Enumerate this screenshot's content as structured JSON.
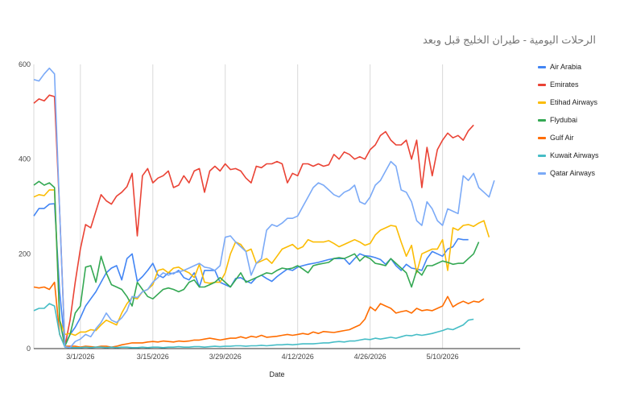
{
  "chart_data": {
    "type": "line",
    "title": "الرحلات اليومية - طيران الخليج قبل وبعد",
    "xlabel": "Date",
    "ylabel": "",
    "x_start": "2026-02-20",
    "xlim": [
      "2026-02-20",
      "2026-05-25"
    ],
    "ylim": [
      0,
      600
    ],
    "yticks": [
      0,
      200,
      400,
      600
    ],
    "xticks": [
      "3/1/2026",
      "3/15/2026",
      "3/29/2026",
      "4/12/2026",
      "4/26/2026",
      "5/10/2026"
    ],
    "grid": "vertical",
    "legend_position": "right",
    "series": [
      {
        "name": "Air Arabia",
        "color": "#4285F4",
        "values": [
          280,
          296,
          296,
          305,
          306,
          120,
          8,
          30,
          45,
          65,
          90,
          105,
          120,
          140,
          160,
          170,
          175,
          145,
          190,
          200,
          142,
          152,
          165,
          180,
          155,
          150,
          160,
          158,
          165,
          150,
          145,
          160,
          130,
          165,
          165,
          165,
          140,
          135,
          130,
          148,
          150,
          143,
          138,
          150,
          155,
          148,
          142,
          152,
          160,
          168,
          165,
          172,
          175,
          178,
          180,
          182,
          185,
          188,
          190,
          190,
          190,
          178,
          190,
          200,
          196,
          195,
          192,
          188,
          178,
          190,
          175,
          165,
          178,
          170,
          168,
          165,
          190,
          205,
          200,
          195,
          210,
          215,
          232,
          230,
          230
        ]
      },
      {
        "name": "Emirates",
        "color": "#EA4335",
        "values": [
          518,
          527,
          523,
          535,
          532,
          290,
          5,
          60,
          140,
          210,
          262,
          255,
          290,
          325,
          312,
          305,
          322,
          330,
          342,
          370,
          238,
          365,
          380,
          350,
          360,
          365,
          375,
          340,
          345,
          365,
          350,
          375,
          380,
          330,
          375,
          385,
          375,
          390,
          378,
          380,
          375,
          360,
          350,
          385,
          382,
          390,
          390,
          395,
          390,
          350,
          370,
          365,
          390,
          390,
          385,
          390,
          385,
          388,
          410,
          400,
          415,
          410,
          400,
          405,
          400,
          420,
          430,
          450,
          458,
          440,
          430,
          430,
          440,
          400,
          440,
          340,
          425,
          365,
          420,
          440,
          455,
          445,
          450,
          440,
          460,
          472
        ]
      },
      {
        "name": "Etihad Airways",
        "color": "#FBBC04",
        "values": [
          320,
          325,
          323,
          335,
          335,
          60,
          30,
          32,
          28,
          35,
          35,
          40,
          38,
          50,
          60,
          55,
          50,
          75,
          95,
          108,
          105,
          120,
          125,
          135,
          165,
          168,
          160,
          170,
          172,
          165,
          160,
          150,
          178,
          140,
          138,
          140,
          140,
          160,
          200,
          225,
          220,
          205,
          210,
          180,
          185,
          190,
          180,
          195,
          210,
          215,
          220,
          210,
          215,
          230,
          225,
          225,
          225,
          228,
          222,
          215,
          220,
          225,
          230,
          225,
          218,
          222,
          240,
          250,
          255,
          260,
          258,
          225,
          195,
          218,
          160,
          200,
          205,
          210,
          210,
          230,
          165,
          255,
          250,
          260,
          262,
          258,
          265,
          270,
          235
        ]
      },
      {
        "name": "Flydubai",
        "color": "#34A853",
        "values": [
          345,
          353,
          345,
          350,
          340,
          60,
          5,
          30,
          75,
          90,
          172,
          175,
          140,
          195,
          160,
          135,
          130,
          125,
          110,
          90,
          140,
          125,
          110,
          105,
          115,
          125,
          128,
          125,
          120,
          125,
          140,
          145,
          130,
          130,
          135,
          140,
          150,
          140,
          130,
          145,
          160,
          140,
          145,
          150,
          155,
          160,
          158,
          165,
          170,
          168,
          170,
          175,
          168,
          160,
          175,
          178,
          180,
          182,
          190,
          192,
          190,
          195,
          200,
          185,
          195,
          190,
          180,
          178,
          175,
          190,
          180,
          170,
          160,
          130,
          165,
          155,
          175,
          175,
          180,
          185,
          182,
          178,
          180,
          180,
          190,
          200,
          225
        ]
      },
      {
        "name": "Gulf Air",
        "color": "#FF6D01",
        "values": [
          130,
          128,
          130,
          125,
          140,
          30,
          5,
          5,
          5,
          3,
          5,
          4,
          3,
          5,
          5,
          3,
          5,
          8,
          10,
          12,
          12,
          12,
          14,
          15,
          14,
          16,
          15,
          14,
          16,
          15,
          16,
          18,
          18,
          20,
          22,
          20,
          18,
          20,
          22,
          22,
          25,
          22,
          26,
          24,
          28,
          24,
          25,
          26,
          28,
          30,
          28,
          30,
          32,
          30,
          35,
          32,
          36,
          35,
          34,
          36,
          38,
          40,
          45,
          50,
          62,
          88,
          80,
          95,
          90,
          85,
          75,
          78,
          80,
          75,
          85,
          80,
          82,
          80,
          85,
          90,
          110,
          88,
          95,
          100,
          95,
          100,
          98,
          105
        ]
      },
      {
        "name": "Kuwait Airways",
        "color": "#46BDC6",
        "values": [
          80,
          85,
          85,
          95,
          90,
          30,
          3,
          2,
          2,
          2,
          3,
          2,
          3,
          3,
          2,
          3,
          2,
          3,
          3,
          2,
          2,
          3,
          2,
          3,
          3,
          2,
          3,
          3,
          4,
          3,
          3,
          4,
          4,
          3,
          4,
          5,
          4,
          5,
          5,
          6,
          6,
          5,
          6,
          6,
          7,
          6,
          7,
          8,
          8,
          9,
          8,
          9,
          10,
          10,
          10,
          11,
          12,
          12,
          14,
          15,
          14,
          16,
          16,
          18,
          20,
          19,
          22,
          20,
          22,
          24,
          22,
          25,
          28,
          27,
          30,
          28,
          30,
          32,
          35,
          38,
          42,
          40,
          45,
          50,
          60,
          62
        ]
      },
      {
        "name": "Qatar Airways",
        "color": "#7BAAF7",
        "values": [
          568,
          565,
          580,
          592,
          580,
          290,
          4,
          2,
          15,
          20,
          30,
          25,
          42,
          55,
          75,
          60,
          55,
          65,
          80,
          110,
          108,
          120,
          125,
          140,
          150,
          160,
          155,
          160,
          162,
          165,
          170,
          175,
          180,
          172,
          170,
          165,
          175,
          235,
          238,
          225,
          215,
          205,
          155,
          180,
          190,
          250,
          262,
          258,
          265,
          275,
          275,
          280,
          300,
          320,
          340,
          350,
          345,
          335,
          325,
          320,
          330,
          335,
          345,
          310,
          305,
          320,
          345,
          355,
          375,
          395,
          385,
          335,
          330,
          310,
          270,
          260,
          310,
          295,
          270,
          260,
          295,
          290,
          285,
          365,
          355,
          370,
          340,
          330,
          320,
          355
        ]
      }
    ]
  }
}
